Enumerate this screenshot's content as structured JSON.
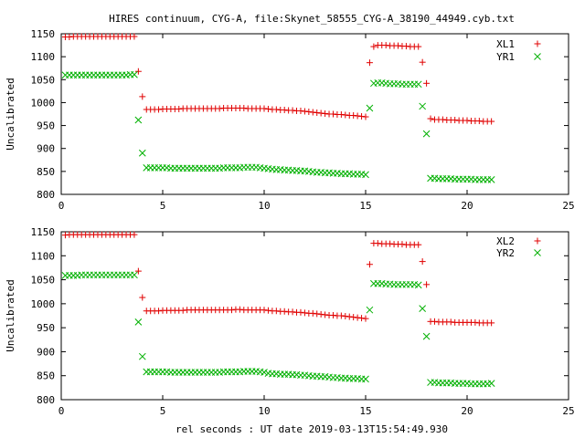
{
  "title": "HIRES continuum, CYG-A, file:Skynet_58555_CYG-A_38190_44949.cyb.txt",
  "xlabel": "rel seconds : UT date 2019-03-13T15:54:49.930",
  "colors": {
    "series_plus": "#e00000",
    "series_x": "#00b000",
    "axis": "#000000"
  },
  "chart_data": [
    {
      "type": "scatter",
      "ylabel": "Uncalibrated",
      "xlim": [
        0,
        25
      ],
      "ylim": [
        800,
        1150
      ],
      "xticks": [
        0,
        5,
        10,
        15,
        20,
        25
      ],
      "yticks": [
        800,
        850,
        900,
        950,
        1000,
        1050,
        1100,
        1150
      ],
      "grid": false,
      "legend": "top-right",
      "series": [
        {
          "name": "XL1",
          "marker": "plus",
          "color": "#e00000",
          "x": [
            0.2,
            0.4,
            0.6,
            0.8,
            1.0,
            1.2,
            1.4,
            1.6,
            1.8,
            2.0,
            2.2,
            2.4,
            2.6,
            2.8,
            3.0,
            3.2,
            3.4,
            3.6,
            3.8,
            4.0,
            4.2,
            4.4,
            4.6,
            4.8,
            5.0,
            5.2,
            5.4,
            5.6,
            5.8,
            6.0,
            6.2,
            6.4,
            6.6,
            6.8,
            7.0,
            7.2,
            7.4,
            7.6,
            7.8,
            8.0,
            8.2,
            8.4,
            8.6,
            8.8,
            9.0,
            9.2,
            9.4,
            9.6,
            9.8,
            10.0,
            10.2,
            10.4,
            10.6,
            10.8,
            11.0,
            11.2,
            11.4,
            11.6,
            11.8,
            12.0,
            12.2,
            12.4,
            12.6,
            12.8,
            13.0,
            13.2,
            13.4,
            13.6,
            13.8,
            14.0,
            14.2,
            14.4,
            14.6,
            14.8,
            15.0,
            15.2,
            15.4,
            15.6,
            15.8,
            16.0,
            16.2,
            16.4,
            16.6,
            16.8,
            17.0,
            17.2,
            17.4,
            17.6,
            17.8,
            18.0,
            18.2,
            18.4,
            18.6,
            18.8,
            19.0,
            19.2,
            19.4,
            19.6,
            19.8,
            20.0,
            20.2,
            20.4,
            20.6,
            20.8,
            21.0,
            21.2
          ],
          "y": [
            1143,
            1143,
            1144,
            1144,
            1144,
            1144,
            1144,
            1144,
            1144,
            1144,
            1144,
            1144,
            1144,
            1144,
            1144,
            1144,
            1144,
            1144,
            1068,
            1013,
            985,
            985,
            985,
            985,
            986,
            986,
            986,
            986,
            986,
            987,
            987,
            987,
            987,
            987,
            987,
            987,
            987,
            987,
            987,
            988,
            988,
            988,
            988,
            988,
            988,
            987,
            987,
            987,
            987,
            987,
            986,
            985,
            985,
            984,
            984,
            983,
            983,
            982,
            982,
            981,
            980,
            979,
            978,
            977,
            976,
            975,
            975,
            974,
            974,
            973,
            972,
            972,
            971,
            970,
            969,
            1087,
            1122,
            1125,
            1125,
            1125,
            1124,
            1124,
            1124,
            1123,
            1123,
            1122,
            1122,
            1122,
            1088,
            1042,
            965,
            963,
            963,
            963,
            962,
            962,
            962,
            961,
            961,
            961,
            960,
            960,
            960,
            959,
            959,
            959
          ]
        },
        {
          "name": "YR1",
          "marker": "cross",
          "color": "#00b000",
          "x": [
            0.2,
            0.4,
            0.6,
            0.8,
            1.0,
            1.2,
            1.4,
            1.6,
            1.8,
            2.0,
            2.2,
            2.4,
            2.6,
            2.8,
            3.0,
            3.2,
            3.4,
            3.6,
            3.8,
            4.0,
            4.2,
            4.4,
            4.6,
            4.8,
            5.0,
            5.2,
            5.4,
            5.6,
            5.8,
            6.0,
            6.2,
            6.4,
            6.6,
            6.8,
            7.0,
            7.2,
            7.4,
            7.6,
            7.8,
            8.0,
            8.2,
            8.4,
            8.6,
            8.8,
            9.0,
            9.2,
            9.4,
            9.6,
            9.8,
            10.0,
            10.2,
            10.4,
            10.6,
            10.8,
            11.0,
            11.2,
            11.4,
            11.6,
            11.8,
            12.0,
            12.2,
            12.4,
            12.6,
            12.8,
            13.0,
            13.2,
            13.4,
            13.6,
            13.8,
            14.0,
            14.2,
            14.4,
            14.6,
            14.8,
            15.0,
            15.2,
            15.4,
            15.6,
            15.8,
            16.0,
            16.2,
            16.4,
            16.6,
            16.8,
            17.0,
            17.2,
            17.4,
            17.6,
            17.8,
            18.0,
            18.2,
            18.4,
            18.6,
            18.8,
            19.0,
            19.2,
            19.4,
            19.6,
            19.8,
            20.0,
            20.2,
            20.4,
            20.6,
            20.8,
            21.0,
            21.2
          ],
          "y": [
            1060,
            1060,
            1060,
            1060,
            1060,
            1060,
            1060,
            1060,
            1060,
            1060,
            1060,
            1060,
            1060,
            1060,
            1060,
            1060,
            1061,
            1061,
            962,
            890,
            858,
            858,
            858,
            858,
            858,
            858,
            857,
            857,
            857,
            857,
            857,
            857,
            857,
            857,
            857,
            857,
            857,
            857,
            857,
            858,
            858,
            858,
            858,
            858,
            859,
            859,
            859,
            859,
            858,
            857,
            856,
            855,
            854,
            854,
            853,
            853,
            852,
            852,
            851,
            851,
            850,
            849,
            848,
            848,
            847,
            847,
            846,
            846,
            845,
            845,
            845,
            844,
            844,
            844,
            843,
            988,
            1042,
            1043,
            1043,
            1042,
            1041,
            1041,
            1041,
            1040,
            1040,
            1040,
            1040,
            1040,
            992,
            932,
            835,
            835,
            834,
            834,
            834,
            834,
            833,
            833,
            833,
            833,
            833,
            832,
            832,
            832,
            832,
            832
          ]
        }
      ]
    },
    {
      "type": "scatter",
      "ylabel": "Uncalibrated",
      "xlim": [
        0,
        25
      ],
      "ylim": [
        800,
        1150
      ],
      "xticks": [
        0,
        5,
        10,
        15,
        20,
        25
      ],
      "yticks": [
        800,
        850,
        900,
        950,
        1000,
        1050,
        1100,
        1150
      ],
      "grid": false,
      "legend": "top-right",
      "series": [
        {
          "name": "XL2",
          "marker": "plus",
          "color": "#e00000",
          "x": [
            0.2,
            0.4,
            0.6,
            0.8,
            1.0,
            1.2,
            1.4,
            1.6,
            1.8,
            2.0,
            2.2,
            2.4,
            2.6,
            2.8,
            3.0,
            3.2,
            3.4,
            3.6,
            3.8,
            4.0,
            4.2,
            4.4,
            4.6,
            4.8,
            5.0,
            5.2,
            5.4,
            5.6,
            5.8,
            6.0,
            6.2,
            6.4,
            6.6,
            6.8,
            7.0,
            7.2,
            7.4,
            7.6,
            7.8,
            8.0,
            8.2,
            8.4,
            8.6,
            8.8,
            9.0,
            9.2,
            9.4,
            9.6,
            9.8,
            10.0,
            10.2,
            10.4,
            10.6,
            10.8,
            11.0,
            11.2,
            11.4,
            11.6,
            11.8,
            12.0,
            12.2,
            12.4,
            12.6,
            12.8,
            13.0,
            13.2,
            13.4,
            13.6,
            13.8,
            14.0,
            14.2,
            14.4,
            14.6,
            14.8,
            15.0,
            15.2,
            15.4,
            15.6,
            15.8,
            16.0,
            16.2,
            16.4,
            16.6,
            16.8,
            17.0,
            17.2,
            17.4,
            17.6,
            17.8,
            18.0,
            18.2,
            18.4,
            18.6,
            18.8,
            19.0,
            19.2,
            19.4,
            19.6,
            19.8,
            20.0,
            20.2,
            20.4,
            20.6,
            20.8,
            21.0,
            21.2
          ],
          "y": [
            1143,
            1144,
            1144,
            1144,
            1144,
            1144,
            1144,
            1144,
            1144,
            1144,
            1144,
            1144,
            1144,
            1144,
            1144,
            1144,
            1144,
            1144,
            1068,
            1013,
            985,
            985,
            985,
            985,
            986,
            986,
            986,
            986,
            986,
            986,
            987,
            987,
            987,
            987,
            987,
            987,
            987,
            987,
            987,
            987,
            987,
            987,
            988,
            988,
            987,
            987,
            987,
            987,
            987,
            987,
            986,
            985,
            985,
            984,
            984,
            983,
            983,
            982,
            982,
            981,
            980,
            980,
            979,
            978,
            977,
            976,
            976,
            975,
            975,
            974,
            973,
            972,
            971,
            970,
            969,
            1082,
            1126,
            1126,
            1125,
            1125,
            1125,
            1124,
            1124,
            1124,
            1123,
            1123,
            1123,
            1123,
            1088,
            1040,
            963,
            963,
            962,
            962,
            962,
            962,
            961,
            961,
            961,
            961,
            961,
            961,
            960,
            960,
            960,
            960
          ]
        },
        {
          "name": "YR2",
          "marker": "cross",
          "color": "#00b000",
          "x": [
            0.2,
            0.4,
            0.6,
            0.8,
            1.0,
            1.2,
            1.4,
            1.6,
            1.8,
            2.0,
            2.2,
            2.4,
            2.6,
            2.8,
            3.0,
            3.2,
            3.4,
            3.6,
            3.8,
            4.0,
            4.2,
            4.4,
            4.6,
            4.8,
            5.0,
            5.2,
            5.4,
            5.6,
            5.8,
            6.0,
            6.2,
            6.4,
            6.6,
            6.8,
            7.0,
            7.2,
            7.4,
            7.6,
            7.8,
            8.0,
            8.2,
            8.4,
            8.6,
            8.8,
            9.0,
            9.2,
            9.4,
            9.6,
            9.8,
            10.0,
            10.2,
            10.4,
            10.6,
            10.8,
            11.0,
            11.2,
            11.4,
            11.6,
            11.8,
            12.0,
            12.2,
            12.4,
            12.6,
            12.8,
            13.0,
            13.2,
            13.4,
            13.6,
            13.8,
            14.0,
            14.2,
            14.4,
            14.6,
            14.8,
            15.0,
            15.2,
            15.4,
            15.6,
            15.8,
            16.0,
            16.2,
            16.4,
            16.6,
            16.8,
            17.0,
            17.2,
            17.4,
            17.6,
            17.8,
            18.0,
            18.2,
            18.4,
            18.6,
            18.8,
            19.0,
            19.2,
            19.4,
            19.6,
            19.8,
            20.0,
            20.2,
            20.4,
            20.6,
            20.8,
            21.0,
            21.2
          ],
          "y": [
            1059,
            1059,
            1059,
            1059,
            1060,
            1060,
            1060,
            1060,
            1060,
            1060,
            1060,
            1060,
            1060,
            1060,
            1060,
            1060,
            1060,
            1060,
            962,
            890,
            858,
            858,
            858,
            858,
            858,
            858,
            857,
            857,
            857,
            857,
            857,
            857,
            857,
            857,
            857,
            857,
            857,
            857,
            857,
            858,
            858,
            858,
            858,
            858,
            859,
            859,
            859,
            859,
            858,
            857,
            855,
            854,
            854,
            853,
            853,
            853,
            852,
            852,
            851,
            851,
            850,
            849,
            849,
            848,
            848,
            847,
            846,
            846,
            845,
            845,
            844,
            844,
            844,
            843,
            843,
            987,
            1042,
            1042,
            1042,
            1041,
            1041,
            1040,
            1040,
            1040,
            1040,
            1040,
            1040,
            1039,
            990,
            932,
            836,
            836,
            835,
            835,
            835,
            835,
            834,
            834,
            834,
            834,
            833,
            833,
            833,
            833,
            833,
            834
          ]
        }
      ]
    }
  ]
}
